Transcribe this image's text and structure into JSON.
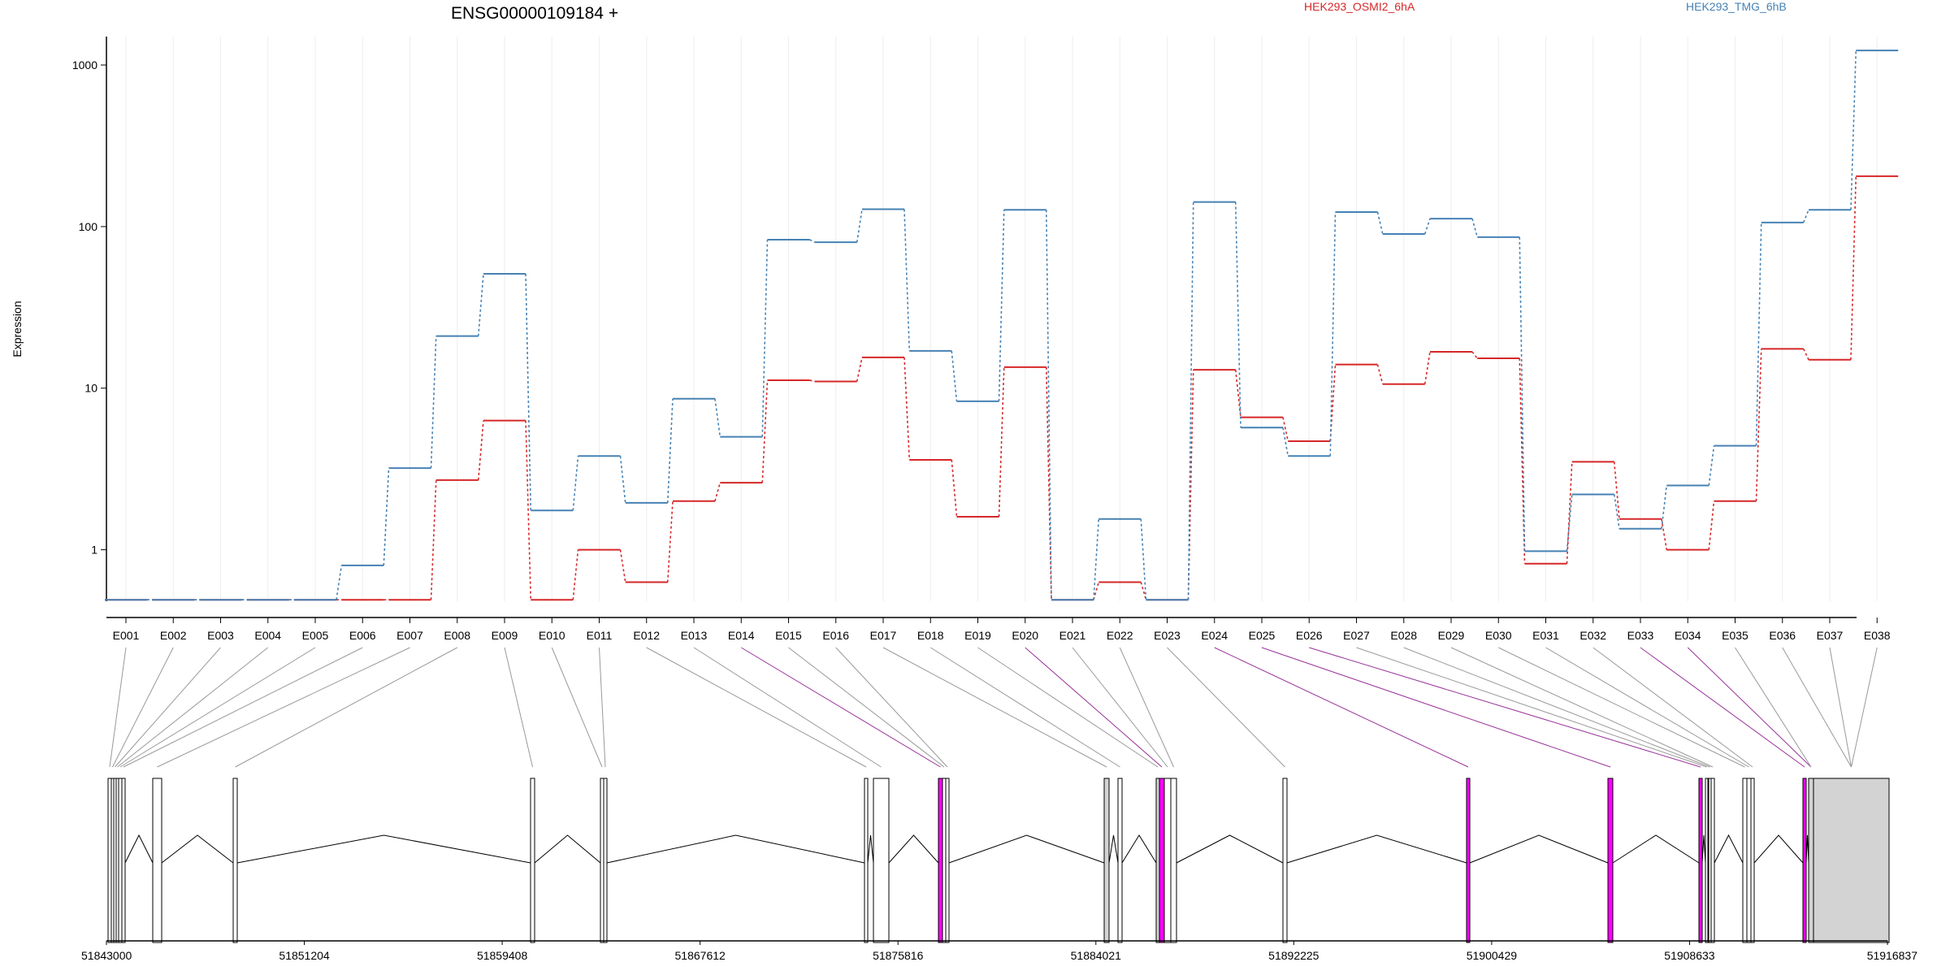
{
  "chart_data": {
    "type": "line",
    "title": "ENSG00000109184 +",
    "ylabel": "Expression",
    "xlabel": "",
    "yscale": "log",
    "ylim": [
      0.48,
      1500
    ],
    "yticks": [
      "1000",
      "100",
      "10",
      "1"
    ],
    "categories": [
      "E001",
      "E002",
      "E003",
      "E004",
      "E005",
      "E006",
      "E007",
      "E008",
      "E009",
      "E010",
      "E011",
      "E012",
      "E013",
      "E014",
      "E015",
      "E016",
      "E017",
      "E018",
      "E019",
      "E020",
      "E021",
      "E022",
      "E023",
      "E024",
      "E025",
      "E026",
      "E027",
      "E028",
      "E029",
      "E030",
      "E031",
      "E032",
      "E033",
      "E034",
      "E035",
      "E036",
      "E037",
      "E038"
    ],
    "series": [
      {
        "name": "HEK293_OSMI2_6hA",
        "color": "#d62728",
        "values": [
          0.49,
          0.49,
          0.49,
          0.49,
          0.49,
          0.49,
          0.49,
          2.7,
          6.3,
          0.49,
          1.0,
          0.63,
          2.0,
          2.6,
          11.2,
          11.0,
          15.5,
          3.6,
          1.6,
          13.5,
          0.49,
          0.63,
          0.49,
          13.0,
          6.6,
          4.7,
          14.0,
          10.6,
          16.8,
          15.3,
          0.82,
          3.5,
          1.55,
          1.0,
          2.0,
          17.5,
          15.0,
          205
        ]
      },
      {
        "name": "HEK293_TMG_6hB",
        "color": "#4682b4",
        "values": [
          0.49,
          0.49,
          0.49,
          0.49,
          0.49,
          0.8,
          3.2,
          21,
          51,
          1.75,
          3.8,
          1.95,
          8.6,
          5.0,
          83,
          80,
          128,
          17,
          8.3,
          127,
          0.49,
          1.55,
          0.49,
          142,
          5.7,
          3.8,
          123,
          90,
          112,
          86,
          0.98,
          2.2,
          1.35,
          2.5,
          4.4,
          106,
          127,
          1230
        ]
      }
    ],
    "gene_model": {
      "coordinate_ticks": [
        "51843000",
        "51851204",
        "51859408",
        "51867612",
        "51875816",
        "51884021",
        "51892225",
        "51900429",
        "51908633",
        "51916837"
      ],
      "highlight_color": "#ff00ff",
      "highlighted_exons": [
        "E014",
        "E020",
        "E024",
        "E025",
        "E026",
        "E033",
        "E034"
      ]
    }
  }
}
